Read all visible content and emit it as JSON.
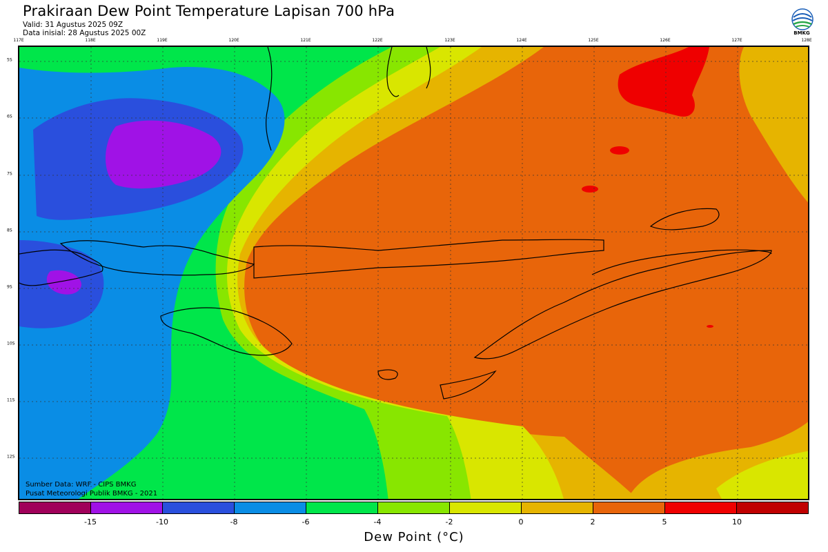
{
  "header": {
    "title": "Prakiraan Dew Point Temperature Lapisan 700 hPa",
    "valid": "Valid: 31 Agustus 2025 09Z",
    "init": "Data inisial: 28 Agustus 2025 00Z"
  },
  "logo": {
    "text": "BMKG",
    "icon": "bmkg-logo"
  },
  "axes": {
    "lon_labels": [
      "117E",
      "118E",
      "119E",
      "120E",
      "121E",
      "122E",
      "123E",
      "124E",
      "125E",
      "126E",
      "127E",
      "128E"
    ],
    "lat_labels": [
      "5S",
      "6S",
      "7S",
      "8S",
      "9S",
      "10S",
      "11S",
      "12S"
    ]
  },
  "credits": {
    "source": "Sumber Data: WRF - CIPS BMKG",
    "org": "Pusat Meteorologi Publik BMKG - 2021"
  },
  "colorbar": {
    "colors": [
      "#a0005a",
      "#a012e6",
      "#2a4fdd",
      "#0a8de5",
      "#00e64a",
      "#88e600",
      "#d9e600",
      "#e6b400",
      "#e8650a",
      "#ef0000",
      "#c00000"
    ],
    "ticks": [
      "-15",
      "-10",
      "-8",
      "-6",
      "-4",
      "-2",
      "0",
      "2",
      "5",
      "10"
    ],
    "label": "Dew Point (°C)"
  },
  "palette": {
    "violet": "#a012e6",
    "blue_dark": "#2a4fdd",
    "blue": "#0a8de5",
    "green": "#00e64a",
    "lime": "#88e600",
    "yellow": "#d9e600",
    "gold": "#e6b400",
    "orange": "#e8650a",
    "red": "#ef0000"
  }
}
